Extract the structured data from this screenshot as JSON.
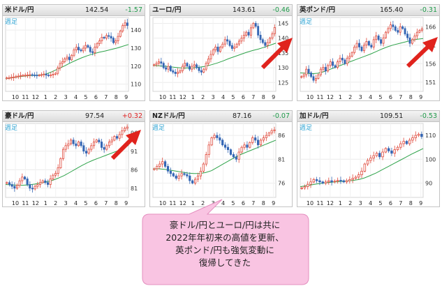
{
  "colors": {
    "candle_up": "#e04a3c",
    "candle_down": "#3567b5",
    "moving_average": "#2ea34a",
    "positive_change": "#e02020",
    "negative_change": "#1f9a4a",
    "period_label": "#33a7d6",
    "arrow": "#e0231d",
    "callout_fill": "#f9c4e2",
    "callout_border": "#e48fbf"
  },
  "callout": {
    "lines": [
      "豪ドル/円とユーロ/円は共に",
      "2022年年初来の高値を更新、",
      "英ポンド/円も強気変動に",
      "復帰してきた"
    ]
  },
  "chart_data": [
    {
      "type": "candlestick",
      "title": "米ドル/円",
      "last": "142.54",
      "change": "-1.57",
      "period_label": "週足",
      "x_tick_labels": [
        "10",
        "11",
        "12",
        "1",
        "2",
        "3",
        "4",
        "5",
        "6",
        "7",
        "8",
        "9"
      ],
      "y_ticks": [
        110,
        120,
        130,
        140
      ],
      "ylim": [
        106,
        147
      ],
      "series": [
        {
          "name": "週足",
          "values": [
            113.5,
            113.6,
            113.8,
            114.0,
            114.2,
            114.5,
            114.8,
            114.9,
            115.0,
            115.1,
            115.3,
            115.1,
            115.0,
            114.8,
            115.0,
            115.3,
            115.6,
            115.0,
            114.8,
            115.1,
            115.5,
            116.0,
            119.0,
            121.5,
            122.5,
            124.0,
            125.0,
            123.5,
            126.0,
            129.0,
            130.5,
            129.0,
            128.5,
            130.0,
            131.5,
            130.5,
            128.0,
            127.5,
            130.5,
            132.5,
            134.0,
            136.0,
            135.5,
            137.0,
            136.5,
            135.5,
            133.0,
            134.0,
            136.5,
            139.5,
            142.5,
            144.0,
            142.54
          ]
        },
        {
          "name": "移動平均線",
          "values": [
            113.0,
            113.5,
            114.0,
            114.4,
            114.7,
            114.9,
            115.1,
            115.7,
            117.0,
            118.5,
            120.0,
            121.7,
            123.2,
            124.6,
            125.8,
            126.8,
            127.7,
            128.4,
            129.2,
            130.0,
            131.0,
            132.0
          ]
        }
      ]
    },
    {
      "type": "candlestick",
      "title": "ユーロ/円",
      "last": "143.61",
      "change": "-0.46",
      "period_label": "週足",
      "x_tick_labels": [
        "10",
        "11",
        "12",
        "1",
        "2",
        "3",
        "4",
        "5",
        "6",
        "7",
        "8",
        "9"
      ],
      "y_ticks": [
        125,
        130,
        135,
        140,
        145
      ],
      "ylim": [
        122,
        147
      ],
      "series": [
        {
          "name": "週足",
          "values": [
            131.0,
            131.5,
            132.0,
            131.5,
            130.0,
            129.5,
            130.5,
            129.0,
            128.5,
            128.0,
            128.5,
            129.0,
            130.5,
            131.5,
            130.5,
            129.5,
            130.5,
            131.0,
            130.0,
            129.0,
            128.5,
            129.5,
            131.5,
            133.0,
            134.5,
            136.0,
            137.0,
            135.5,
            137.0,
            138.0,
            139.5,
            139.0,
            137.5,
            136.5,
            137.0,
            138.0,
            139.0,
            140.0,
            141.0,
            142.0,
            141.0,
            143.5,
            145.0,
            144.0,
            141.0,
            139.5,
            138.5,
            137.5,
            138.5,
            140.0,
            141.5,
            143.61
          ]
        },
        {
          "name": "移動平均線",
          "values": [
            130.8,
            130.6,
            130.5,
            130.3,
            130.1,
            129.9,
            129.9,
            130.0,
            130.2,
            130.5,
            131.0,
            131.6,
            132.3,
            133.1,
            133.8,
            134.5,
            135.2,
            135.8,
            136.3,
            136.9,
            137.6,
            138.3
          ]
        }
      ]
    },
    {
      "type": "candlestick",
      "title": "英ポンド/円",
      "last": "165.40",
      "change": "-0.31",
      "period_label": "週足",
      "x_tick_labels": [
        "10",
        "11",
        "12",
        "1",
        "2",
        "3",
        "4",
        "5",
        "6",
        "7",
        "8",
        "9"
      ],
      "y_ticks": [
        151,
        156,
        161,
        166
      ],
      "ylim": [
        148.5,
        168.5
      ],
      "series": [
        {
          "name": "週足",
          "values": [
            152.5,
            153.0,
            154.5,
            153.5,
            152.5,
            151.5,
            152.0,
            153.0,
            154.5,
            155.0,
            154.0,
            155.5,
            156.5,
            155.5,
            155.0,
            156.5,
            157.5,
            157.0,
            156.0,
            157.5,
            158.0,
            159.0,
            160.5,
            161.5,
            160.5,
            159.5,
            161.0,
            162.0,
            161.0,
            160.5,
            162.5,
            163.5,
            162.5,
            161.5,
            163.0,
            164.5,
            165.5,
            166.5,
            166.0,
            165.0,
            164.5,
            166.0,
            165.5,
            164.0,
            163.0,
            161.5,
            162.5,
            163.5,
            164.5,
            165.0,
            165.4
          ]
        },
        {
          "name": "移動平均線",
          "values": [
            153.5,
            153.4,
            153.3,
            153.4,
            153.8,
            154.4,
            155.0,
            155.6,
            156.2,
            156.8,
            157.4,
            158.0,
            158.6,
            159.3,
            160.0,
            160.6,
            161.1,
            161.5,
            161.9,
            162.3,
            162.6,
            162.8
          ]
        }
      ]
    },
    {
      "type": "candlestick",
      "title": "豪ドル/円",
      "last": "97.54",
      "change": "+0.32",
      "period_label": "週足",
      "x_tick_labels": [
        "10",
        "11",
        "12",
        "1",
        "2",
        "3",
        "4",
        "5",
        "6",
        "7",
        "8",
        "9"
      ],
      "y_ticks": [
        81,
        86,
        91,
        96
      ],
      "ylim": [
        78.5,
        98.5
      ],
      "series": [
        {
          "name": "週足",
          "values": [
            82.5,
            82.0,
            81.5,
            81.0,
            81.8,
            83.0,
            84.0,
            83.5,
            82.0,
            81.0,
            80.8,
            81.5,
            82.0,
            82.5,
            83.0,
            82.5,
            82.0,
            83.5,
            84.5,
            85.0,
            86.5,
            89.0,
            91.5,
            92.5,
            93.0,
            94.0,
            93.0,
            92.5,
            93.5,
            92.5,
            91.0,
            90.5,
            91.5,
            92.5,
            93.5,
            94.0,
            93.5,
            92.0,
            91.5,
            92.5,
            93.5,
            94.0,
            95.0,
            94.5,
            95.5,
            96.5,
            97.2,
            97.54
          ]
        },
        {
          "name": "移動平均線",
          "values": [
            82.0,
            81.9,
            81.8,
            81.8,
            81.9,
            82.1,
            82.4,
            82.7,
            83.1,
            83.7,
            84.4,
            85.3,
            86.2,
            87.1,
            87.9,
            88.6,
            89.2,
            89.8,
            90.4,
            91.0,
            91.8,
            92.6
          ]
        }
      ]
    },
    {
      "type": "candlestick",
      "title": "NZドル/円",
      "last": "87.16",
      "change": "-0.07",
      "period_label": "週足",
      "x_tick_labels": [
        "10",
        "11",
        "12",
        "1",
        "2",
        "3",
        "4",
        "5",
        "6",
        "7",
        "8",
        "9"
      ],
      "y_ticks": [
        76,
        81,
        86
      ],
      "ylim": [
        73,
        88.5
      ],
      "series": [
        {
          "name": "週足",
          "values": [
            79.0,
            79.5,
            80.0,
            80.5,
            79.5,
            78.5,
            78.0,
            77.5,
            77.0,
            77.5,
            78.0,
            77.8,
            77.5,
            76.5,
            76.0,
            76.8,
            77.5,
            78.5,
            80.0,
            82.0,
            84.0,
            85.5,
            86.0,
            85.5,
            85.0,
            84.0,
            83.5,
            83.0,
            82.0,
            81.5,
            81.0,
            82.5,
            83.5,
            84.0,
            83.5,
            84.5,
            85.5,
            85.0,
            84.0,
            85.0,
            85.5,
            86.0,
            86.5,
            87.0,
            87.16
          ]
        },
        {
          "name": "移動平均線",
          "values": [
            79.0,
            79.0,
            78.9,
            78.7,
            78.5,
            78.3,
            78.1,
            78.0,
            78.0,
            78.2,
            78.6,
            79.3,
            80.0,
            80.7,
            81.4,
            82.0,
            82.5,
            83.0,
            83.5,
            84.0,
            84.5,
            85.0
          ]
        }
      ]
    },
    {
      "type": "candlestick",
      "title": "加ドル/円",
      "last": "109.51",
      "change": "-0.53",
      "period_label": "週足",
      "x_tick_labels": [
        "10",
        "11",
        "12",
        "1",
        "2",
        "3",
        "4",
        "5",
        "6",
        "7",
        "8",
        "9"
      ],
      "y_ticks": [
        90,
        100,
        110
      ],
      "ylim": [
        84,
        115
      ],
      "series": [
        {
          "name": "週足",
          "values": [
            88.0,
            88.5,
            89.5,
            90.5,
            91.5,
            91.0,
            90.5,
            90.0,
            90.5,
            91.0,
            90.5,
            90.8,
            91.2,
            91.0,
            90.5,
            91.0,
            91.5,
            92.0,
            92.5,
            93.5,
            95.0,
            98.0,
            99.5,
            100.5,
            101.5,
            102.5,
            101.0,
            103.0,
            104.5,
            103.5,
            102.5,
            104.0,
            105.0,
            106.5,
            107.5,
            106.5,
            108.0,
            109.0,
            110.0,
            110.5,
            109.51
          ]
        },
        {
          "name": "移動平均線",
          "values": [
            88.5,
            88.9,
            89.3,
            89.7,
            90.0,
            90.3,
            90.5,
            90.7,
            90.9,
            91.1,
            91.5,
            92.2,
            93.2,
            94.3,
            95.6,
            96.9,
            98.2,
            99.5,
            100.8,
            102.1,
            103.3,
            104.5
          ]
        }
      ]
    }
  ]
}
